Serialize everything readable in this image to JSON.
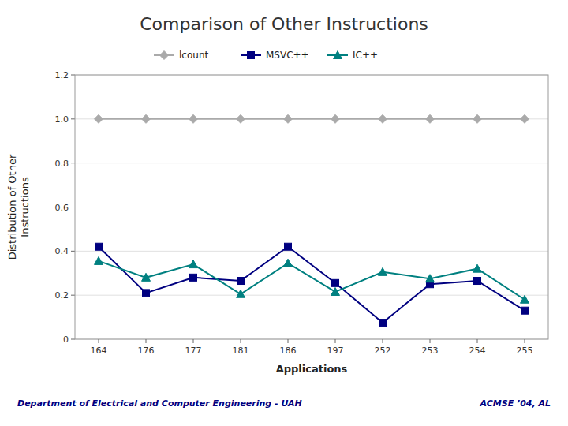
{
  "chart_data": {
    "type": "line",
    "title": "Comparison of Other Instructions",
    "x_label": "Applications",
    "y_label": "Distribution of Other\nInstructions",
    "annotations": [
      "Department of Electrical and Computer Engineering - UAH",
      "ACMSE ’04, AL"
    ],
    "categories": [
      "164",
      "176",
      "177",
      "181",
      "186",
      "197",
      "252",
      "253",
      "254",
      "255"
    ],
    "series": [
      {
        "name": "lcount",
        "color": "#aaaaaa",
        "marker": "diamond",
        "values": [
          1.0,
          1.0,
          1.0,
          1.0,
          1.0,
          1.0,
          1.0,
          1.0,
          1.0,
          1.0
        ]
      },
      {
        "name": "MSVC++",
        "color": "#000080",
        "marker": "square",
        "values": [
          0.42,
          0.21,
          0.28,
          0.265,
          0.42,
          0.255,
          0.075,
          0.25,
          0.265,
          0.13
        ]
      },
      {
        "name": "IC++",
        "color": "#008080",
        "marker": "triangle",
        "values": [
          0.355,
          0.28,
          0.34,
          0.205,
          0.345,
          0.215,
          0.305,
          0.275,
          0.32,
          0.18
        ]
      }
    ],
    "ylim": [
      0,
      1.2
    ],
    "yticks": [
      0,
      0.2,
      0.4,
      0.6,
      0.8,
      {
        "value": 1,
        "label": "1.0"
      },
      1.2
    ],
    "grid": true
  }
}
